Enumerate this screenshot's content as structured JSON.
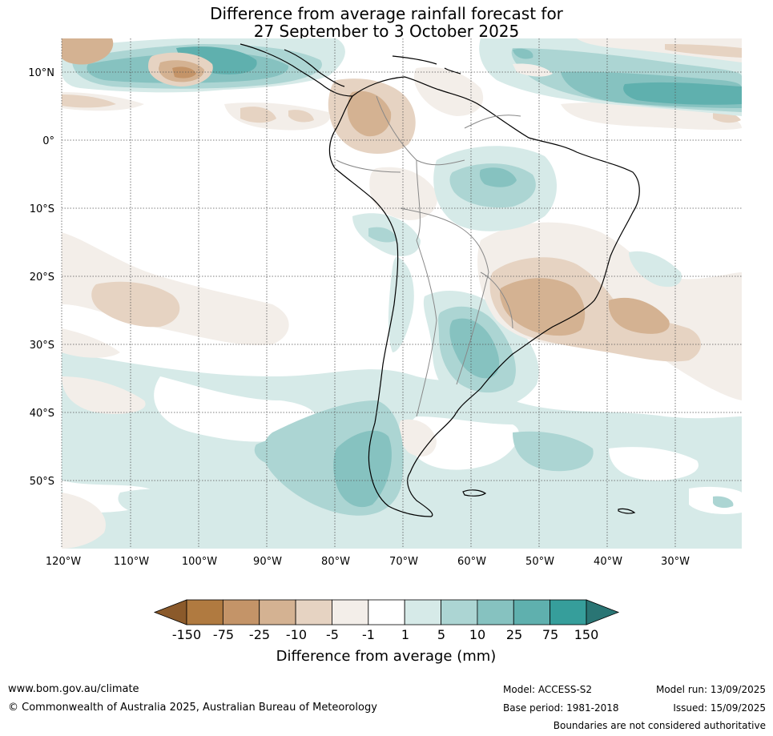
{
  "title": {
    "line1": "Difference from average rainfall forecast for",
    "line2": "27 September to 3 October 2025"
  },
  "map": {
    "lat_ticks": [
      "10°N",
      "0°",
      "10°S",
      "20°S",
      "30°S",
      "40°S",
      "50°S"
    ],
    "lon_ticks": [
      "120°W",
      "110°W",
      "100°W",
      "90°W",
      "80°W",
      "70°W",
      "60°W",
      "50°W",
      "40°W",
      "30°W"
    ]
  },
  "colorbar": {
    "tick_labels": [
      "-150",
      "-75",
      "-25",
      "-10",
      "-5",
      "-1",
      "1",
      "5",
      "10",
      "25",
      "75",
      "150"
    ],
    "colors": [
      "#8b5a2b",
      "#b07a40",
      "#c49468",
      "#d4b292",
      "#e6d3c2",
      "#f3eee9",
      "#ffffff",
      "#d6eae8",
      "#acd5d3",
      "#86c2c0",
      "#5fb0ae",
      "#369e9b",
      "#2a7574"
    ],
    "label": "Difference from average (mm)"
  },
  "footer": {
    "website": "www.bom.gov.au/climate",
    "copyright": "© Commonwealth of Australia 2025, Australian Bureau of Meteorology",
    "model": "Model: ACCESS-S2",
    "base_period": "Base period: 1981-2018",
    "model_run": "Model run: 13/09/2025",
    "issued": "Issued: 15/09/2025",
    "boundaries_note": "Boundaries are not considered authoritative"
  }
}
